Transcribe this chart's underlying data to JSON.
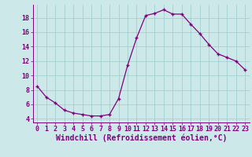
{
  "hours": [
    0,
    1,
    2,
    3,
    4,
    5,
    6,
    7,
    8,
    9,
    10,
    11,
    12,
    13,
    14,
    15,
    16,
    17,
    18,
    19,
    20,
    21,
    22,
    23
  ],
  "windchill": [
    8.5,
    7.0,
    6.2,
    5.2,
    4.8,
    4.6,
    4.4,
    4.4,
    4.6,
    6.8,
    11.4,
    15.2,
    18.3,
    18.6,
    19.1,
    18.5,
    18.5,
    17.1,
    15.8,
    14.3,
    13.0,
    12.5,
    12.0,
    10.8
  ],
  "line_color": "#800080",
  "marker": "+",
  "bg_color": "#cce8e8",
  "grid_color": "#99cccc",
  "xlabel": "Windchill (Refroidissement éolien,°C)",
  "tick_color": "#800080",
  "label_color": "#800080",
  "ylim": [
    3.5,
    19.8
  ],
  "xlim": [
    -0.5,
    23.5
  ],
  "yticks": [
    4,
    6,
    8,
    10,
    12,
    14,
    16,
    18
  ],
  "xticks": [
    0,
    1,
    2,
    3,
    4,
    5,
    6,
    7,
    8,
    9,
    10,
    11,
    12,
    13,
    14,
    15,
    16,
    17,
    18,
    19,
    20,
    21,
    22,
    23
  ],
  "xlabel_fontsize": 7,
  "tick_fontsize": 6
}
